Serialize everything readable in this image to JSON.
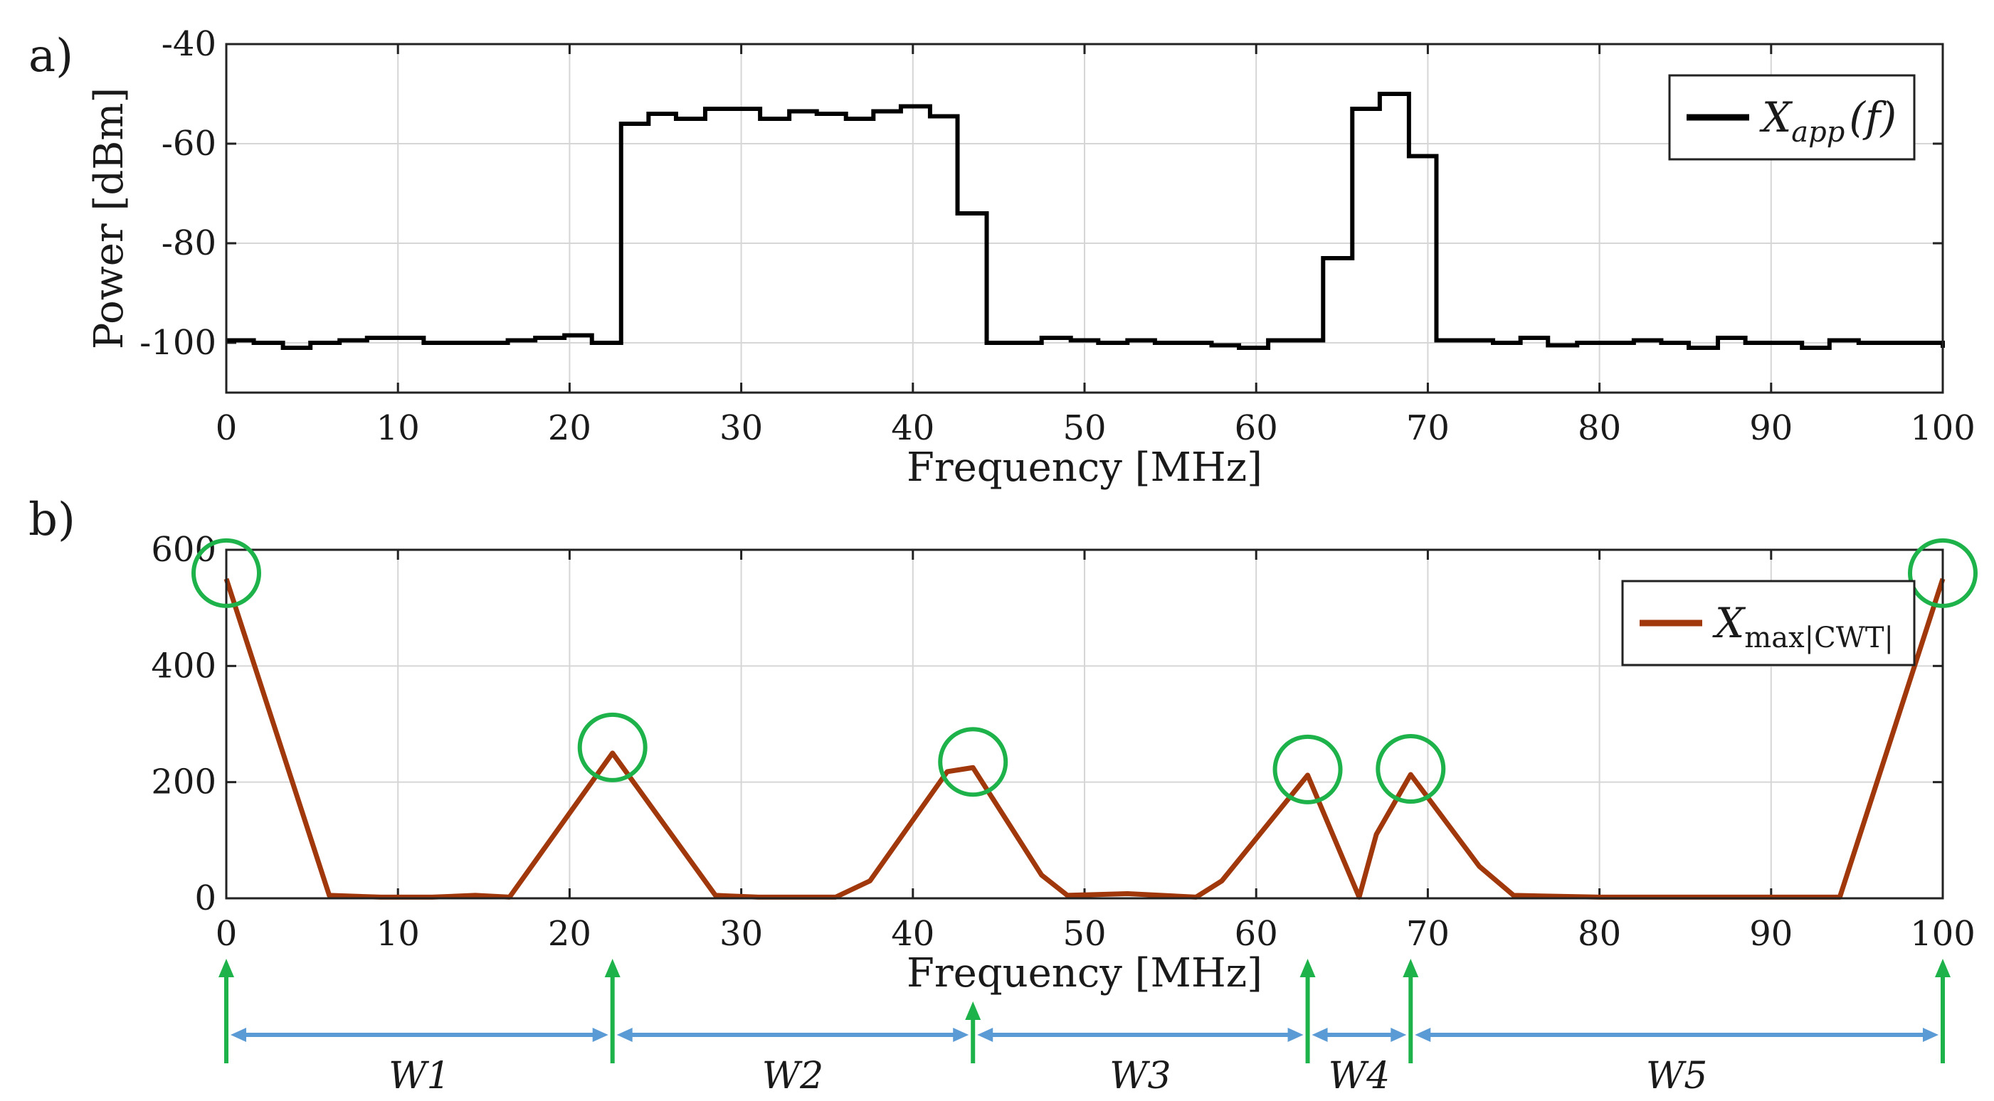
{
  "panel_labels": {
    "a": "a)",
    "b": "b)"
  },
  "chart_data": [
    {
      "id": "a",
      "type": "line",
      "step": true,
      "title": "",
      "xlabel": "Frequency [MHz]",
      "ylabel": "Power [dBm]",
      "xlim": [
        0,
        100
      ],
      "ylim": [
        -110,
        -40
      ],
      "xticks": [
        0,
        10,
        20,
        30,
        40,
        50,
        60,
        70,
        80,
        90,
        100
      ],
      "xtick_labels": [
        "0",
        "10",
        "20",
        "30",
        "40",
        "50",
        "60",
        "70",
        "80",
        "90",
        "100"
      ],
      "yticks": [
        -100,
        -80,
        -60,
        -40
      ],
      "ytick_labels": [
        "-100",
        "-80",
        "-60",
        "-40"
      ],
      "grid": true,
      "legend": {
        "position": "top-right",
        "entries": [
          {
            "label_main": "X",
            "label_sub": "app",
            "label_tail": "(f)",
            "color": "#000000"
          }
        ]
      },
      "series": [
        {
          "name": "X_app(f)",
          "color": "#000000",
          "x": [
            0,
            1.6,
            3.3,
            4.9,
            6.6,
            8.2,
            9.8,
            11.5,
            13.1,
            14.8,
            16.4,
            18.0,
            19.7,
            21.3,
            23.0,
            24.6,
            26.2,
            27.9,
            29.5,
            31.1,
            32.8,
            34.4,
            36.1,
            37.7,
            39.3,
            41.0,
            42.6,
            44.3,
            45.9,
            47.5,
            49.2,
            50.8,
            52.5,
            54.1,
            55.7,
            57.4,
            59.0,
            60.7,
            62.3,
            63.9,
            65.6,
            67.2,
            68.9,
            70.5,
            72.1,
            73.8,
            75.4,
            77.0,
            78.7,
            80.3,
            82.0,
            83.6,
            85.2,
            86.9,
            88.5,
            90.2,
            91.8,
            93.4,
            95.1,
            96.7,
            98.4,
            100
          ],
          "values": [
            -99.5,
            -100,
            -101,
            -100,
            -99.5,
            -99,
            -99,
            -100,
            -100,
            -100,
            -99.5,
            -99,
            -98.5,
            -100,
            -56,
            -54,
            -55,
            -53,
            -53,
            -55,
            -53.5,
            -54,
            -55,
            -53.5,
            -52.5,
            -54.5,
            -74,
            -100,
            -100,
            -99,
            -99.5,
            -100,
            -99.5,
            -100,
            -100,
            -100.5,
            -101,
            -99.5,
            -99.5,
            -83,
            -53,
            -50,
            -62.5,
            -99.5,
            -99.5,
            -100,
            -99,
            -100.5,
            -100,
            -100,
            -99.5,
            -100,
            -101,
            -99,
            -100,
            -100,
            -101,
            -99.5,
            -100,
            -100,
            -100,
            -101
          ]
        }
      ]
    },
    {
      "id": "b",
      "type": "line",
      "title": "",
      "xlabel": "Frequency [MHz]",
      "ylabel": "",
      "xlim": [
        0,
        100
      ],
      "ylim": [
        0,
        600
      ],
      "xticks": [
        0,
        10,
        20,
        30,
        40,
        50,
        60,
        70,
        80,
        90,
        100
      ],
      "xtick_labels": [
        "0",
        "10",
        "20",
        "30",
        "40",
        "50",
        "60",
        "70",
        "80",
        "90",
        "100"
      ],
      "yticks": [
        0,
        200,
        400,
        600
      ],
      "ytick_labels": [
        "0",
        "200",
        "400",
        "600"
      ],
      "grid": true,
      "legend": {
        "position": "top-right",
        "entries": [
          {
            "label_main": "X",
            "label_sub": "max|CWT|",
            "label_tail": "",
            "color": "#a0380b"
          }
        ]
      },
      "series": [
        {
          "name": "X_max|CWT|",
          "color": "#a0380b",
          "x": [
            0,
            6,
            9,
            12,
            14.5,
            16.5,
            22.5,
            28.5,
            31,
            35.5,
            37.5,
            42,
            43.5,
            47.5,
            49,
            52.5,
            56.5,
            58,
            63,
            66,
            67,
            69,
            73,
            75,
            80,
            94,
            100
          ],
          "values": [
            550,
            5,
            2,
            2,
            5,
            2,
            250,
            5,
            2,
            2,
            30,
            218,
            225,
            40,
            5,
            8,
            2,
            30,
            212,
            2,
            110,
            213,
            55,
            5,
            2,
            2,
            550
          ]
        }
      ],
      "peaks": [
        {
          "x": 0,
          "y": 550
        },
        {
          "x": 22.5,
          "y": 250
        },
        {
          "x": 43.5,
          "y": 225
        },
        {
          "x": 63,
          "y": 212
        },
        {
          "x": 69,
          "y": 213
        },
        {
          "x": 100,
          "y": 550
        }
      ],
      "peak_marker_color": "#1db34a",
      "boundary_arrow_color": "#1db34a",
      "boundaries": [
        0,
        22.5,
        43.5,
        63,
        69,
        100
      ],
      "window_arrow_color": "#5b9bd5",
      "windows": [
        {
          "label": "W1",
          "from": 0,
          "to": 22.5
        },
        {
          "label": "W2",
          "from": 22.5,
          "to": 43.5
        },
        {
          "label": "W3",
          "from": 43.5,
          "to": 63
        },
        {
          "label": "W4",
          "from": 63,
          "to": 69
        },
        {
          "label": "W5",
          "from": 69,
          "to": 100
        }
      ]
    }
  ]
}
